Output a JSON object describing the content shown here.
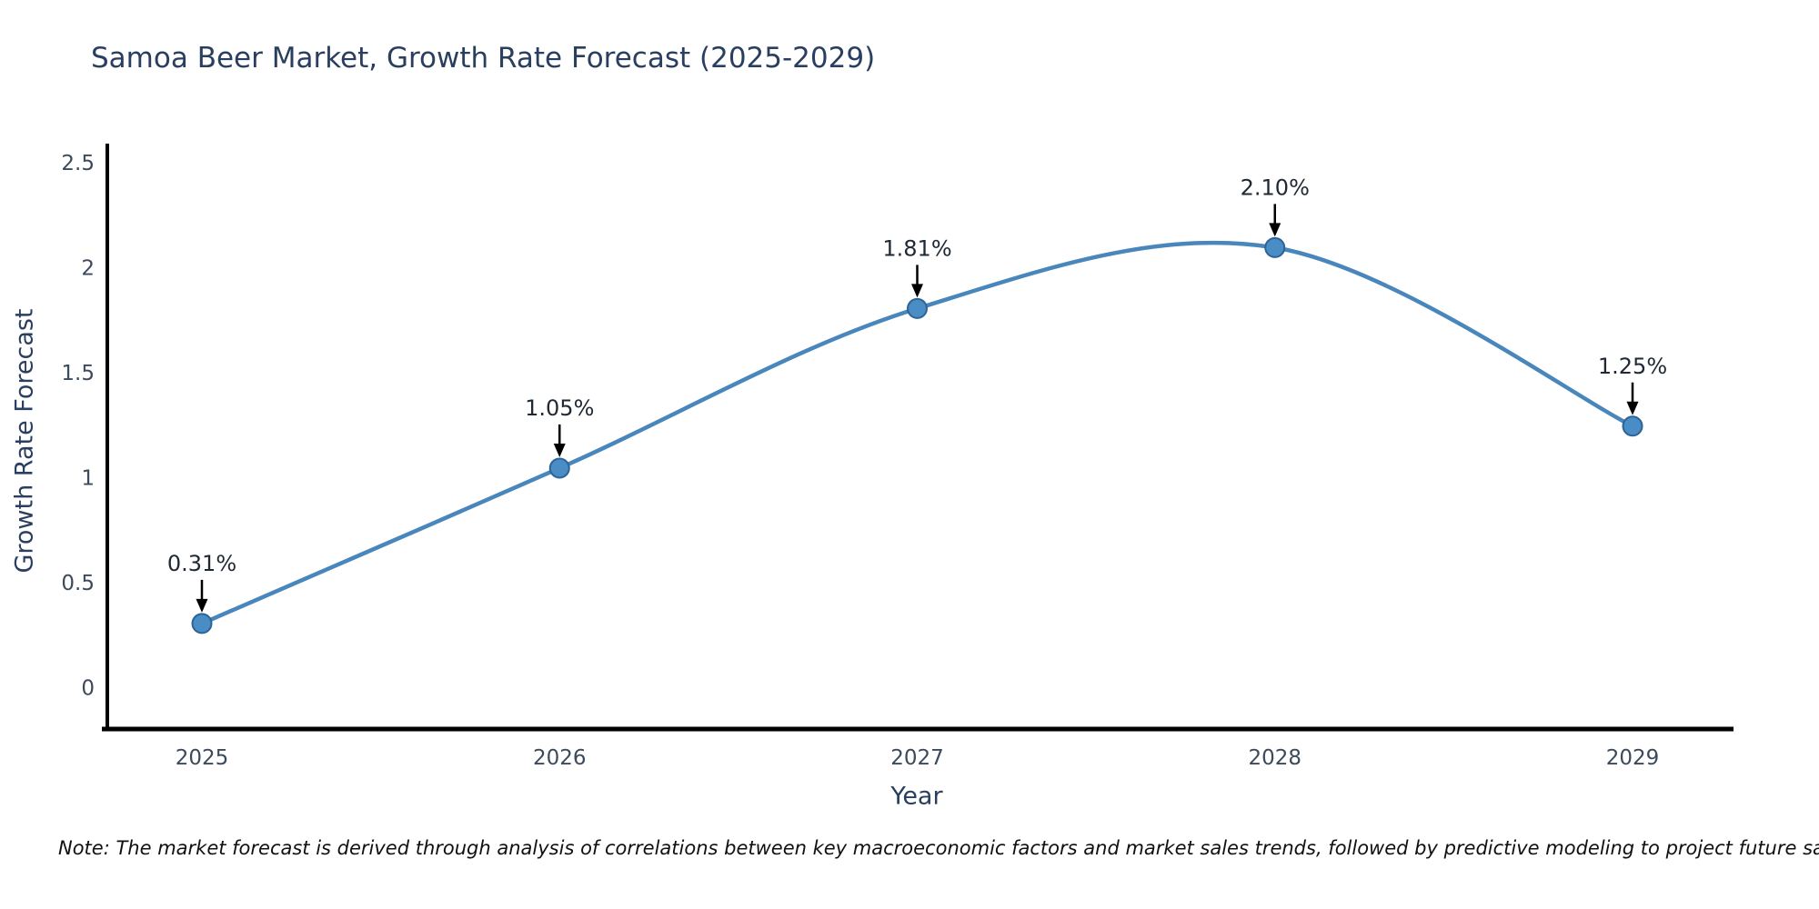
{
  "title": "Samoa Beer Market, Growth Rate Forecast (2025-2029)",
  "footnote": "Note: The market forecast is derived through analysis of correlations between key macroeconomic factors and market sales trends, followed by predictive modeling to project future sales",
  "chart_data": {
    "type": "line",
    "title": "Samoa Beer Market, Growth Rate Forecast (2025-2029)",
    "xlabel": "Year",
    "ylabel": "Growth Rate Forecast",
    "categories": [
      "2025",
      "2026",
      "2027",
      "2028",
      "2029"
    ],
    "series": [
      {
        "name": "Growth Rate Forecast",
        "values": [
          0.31,
          1.05,
          1.81,
          2.1,
          1.25
        ]
      }
    ],
    "point_labels": [
      "0.31%",
      "1.05%",
      "1.81%",
      "2.10%",
      "1.25%"
    ],
    "y_ticks": [
      0,
      0.5,
      1,
      1.5,
      2,
      2.5
    ],
    "y_tick_labels": [
      "0",
      "0.5",
      "1",
      "1.5",
      "2",
      "2.5"
    ],
    "ylim": [
      -0.2,
      2.6
    ],
    "line_shape": "spline",
    "grid": false,
    "legend": false,
    "colors": {
      "line": "#4886bb",
      "marker_fill": "#4a8cc4",
      "marker_edge": "#2d6396",
      "axis_line": "#000000",
      "tick_text": "#3d4a5c",
      "annotation_text": "#1f2833",
      "annotation_arrow": "#000000",
      "title_text": "#2a3f5f"
    }
  }
}
